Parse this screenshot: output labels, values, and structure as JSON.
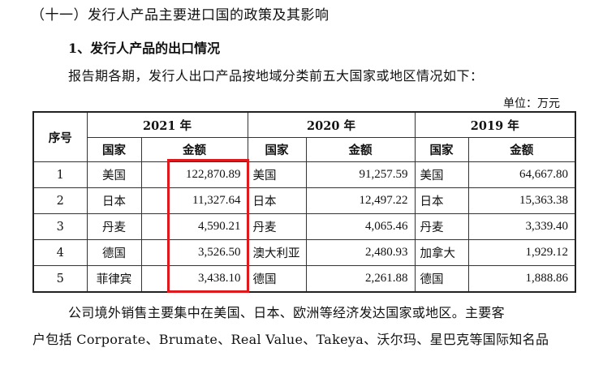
{
  "headings": {
    "section": "（十一）发行人产品主要进口国的政策及其影响",
    "subsection": "1、发行人产品的出口情况"
  },
  "intro": "报告期各期，发行人出口产品按地域分类前五大国家或地区情况如下：",
  "unit": "单位：万元",
  "table": {
    "index_header": "序号",
    "years": [
      "2021 年",
      "2020 年",
      "2019 年"
    ],
    "sub_headers": {
      "country": "国家",
      "amount": "金额"
    },
    "rows": [
      {
        "idx": "1",
        "c2021": "美国",
        "a2021": "122,870.89",
        "c2020": "美国",
        "a2020": "91,257.59",
        "c2019": "美国",
        "a2019": "64,667.80"
      },
      {
        "idx": "2",
        "c2021": "日本",
        "a2021": "11,327.64",
        "c2020": "日本",
        "a2020": "12,497.22",
        "c2019": "日本",
        "a2019": "15,363.38"
      },
      {
        "idx": "3",
        "c2021": "丹麦",
        "a2021": "4,590.21",
        "c2020": "丹麦",
        "a2020": "4,065.46",
        "c2019": "丹麦",
        "a2019": "3,339.40"
      },
      {
        "idx": "4",
        "c2021": "德国",
        "a2021": "3,526.50",
        "c2020": "澳大利亚",
        "a2020": "2,480.93",
        "c2019": "加拿大",
        "a2019": "1,929.12"
      },
      {
        "idx": "5",
        "c2021": "菲律宾",
        "a2021": "3,438.10",
        "c2020": "德国",
        "a2020": "2,261.88",
        "c2019": "德国",
        "a2019": "1,888.86"
      }
    ]
  },
  "highlight_color": "#e0191d",
  "paragraph": {
    "line1": "公司境外销售主要集中在美国、日本、欧洲等经济发达国家或地区。主要客",
    "line2": "户包括 Corporate、Brumate、Real Value、Takeya、沃尔玛、星巴克等国际知名品"
  }
}
